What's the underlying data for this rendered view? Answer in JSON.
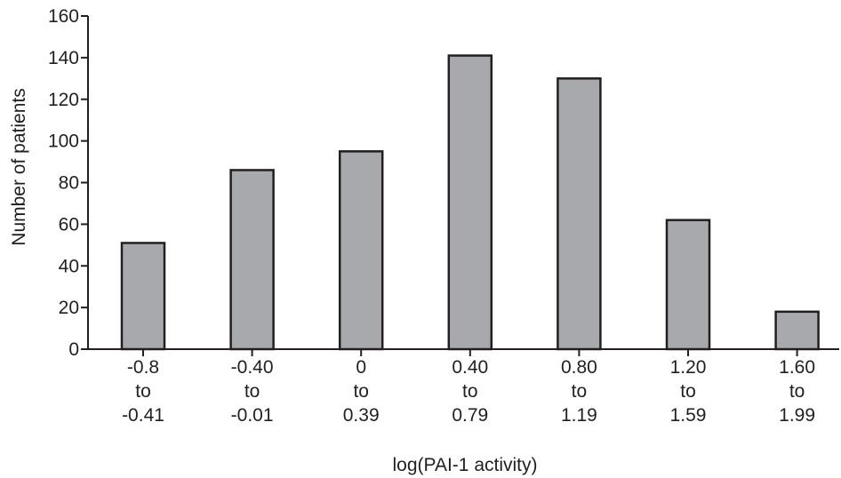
{
  "chart_data": {
    "type": "bar",
    "title": "",
    "xlabel": "log(PAI-1 activity)",
    "ylabel": "Number of patients",
    "ylim": [
      0,
      160
    ],
    "yticks": [
      0,
      20,
      40,
      60,
      80,
      100,
      120,
      140,
      160
    ],
    "grid": false,
    "legend": "none",
    "bar_color": "#a7a9ac",
    "edge_color": "#231f20",
    "categories": [
      [
        "-0.8",
        "to",
        "-0.41"
      ],
      [
        "-0.40",
        "to",
        "-0.01"
      ],
      [
        "0",
        "to",
        "0.39"
      ],
      [
        "0.40",
        "to",
        "0.79"
      ],
      [
        "0.80",
        "to",
        "1.19"
      ],
      [
        "1.20",
        "to",
        "1.59"
      ],
      [
        "1.60",
        "to",
        "1.99"
      ]
    ],
    "values": [
      51,
      86,
      95,
      141,
      130,
      62,
      18
    ]
  }
}
